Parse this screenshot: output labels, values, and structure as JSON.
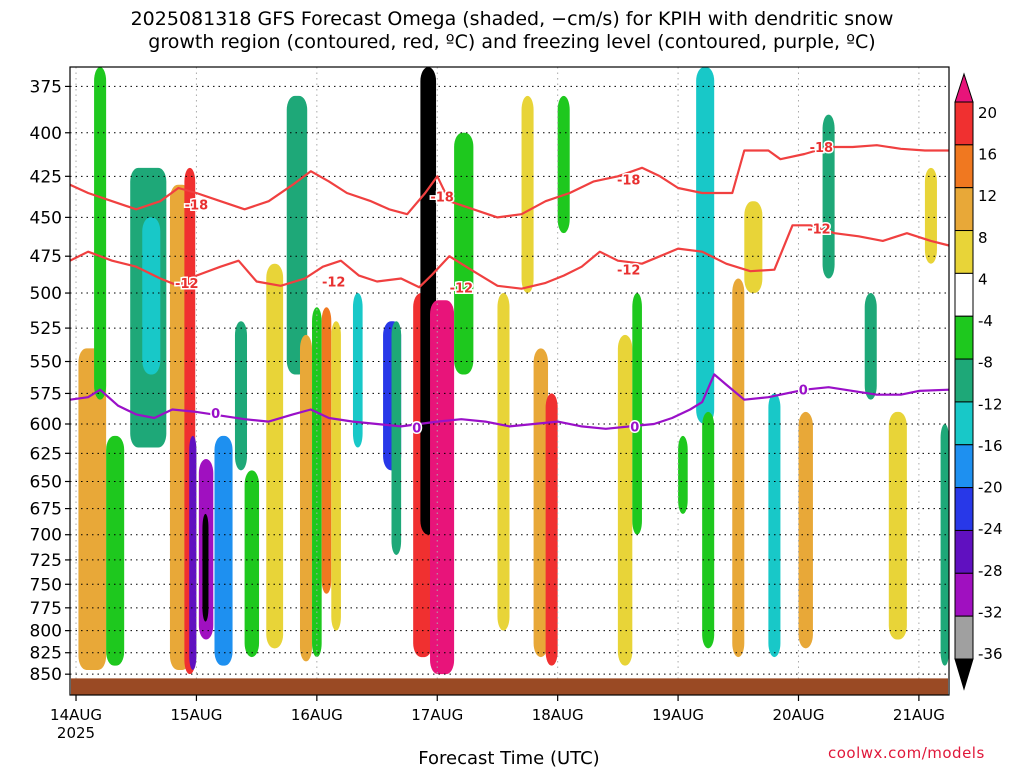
{
  "title": {
    "line1": "2025081318 GFS Forecast Omega (shaded, −cm/s) for KPIH with dendritic snow",
    "line2": "growth region (contoured, red, ºC) and freezing level (contoured, purple, ºC)"
  },
  "credit": "coolwx.com/models",
  "colors": {
    "dgz_contour": "#f04040",
    "freezing_contour": "#9a10c8",
    "ground": "#9a4a24",
    "grid": "#000000"
  },
  "chart_data": {
    "type": "heatmap",
    "xlabel": "Forecast Time (UTC)",
    "x_ticks": [
      {
        "label": "14AUG",
        "sub": "2025",
        "day": 14
      },
      {
        "label": "15AUG",
        "sub": "",
        "day": 15
      },
      {
        "label": "16AUG",
        "sub": "",
        "day": 16
      },
      {
        "label": "17AUG",
        "sub": "",
        "day": 17
      },
      {
        "label": "18AUG",
        "sub": "",
        "day": 18
      },
      {
        "label": "19AUG",
        "sub": "",
        "day": 19
      },
      {
        "label": "20AUG",
        "sub": "",
        "day": 20
      },
      {
        "label": "21AUG",
        "sub": "",
        "day": 21
      }
    ],
    "xlim": [
      13.95,
      21.25
    ],
    "y_ticks": [
      375,
      400,
      425,
      450,
      475,
      500,
      525,
      550,
      575,
      600,
      625,
      650,
      675,
      700,
      725,
      750,
      775,
      800,
      825,
      850
    ],
    "ylim": [
      365,
      875
    ],
    "y_scale": "log-pressure",
    "grid": true,
    "colorbar": {
      "levels": [
        -36,
        -32,
        -28,
        -24,
        -20,
        -16,
        -12,
        -8,
        -4,
        4,
        8,
        12,
        16,
        20
      ],
      "labels": [
        "20",
        "16",
        "12",
        "8",
        "4",
        "-4",
        "-8",
        "-12",
        "-16",
        "-20",
        "-24",
        "-28",
        "-32",
        "-36"
      ],
      "colors_top_to_bottom": [
        "#e8147a",
        "#f03030",
        "#f07820",
        "#e8a838",
        "#e8d438",
        "#ffffff",
        "#1ec81e",
        "#1ea878",
        "#18c8c8",
        "#1e90f0",
        "#2838e8",
        "#6010c0",
        "#a010c0",
        "#a0a0a0",
        "#000000"
      ]
    },
    "shaded_features": [
      {
        "t": [
          14.02,
          14.25
        ],
        "p": [
          540,
          845
        ],
        "value": 10
      },
      {
        "t": [
          14.15,
          14.25
        ],
        "p": [
          365,
          580
        ],
        "value": -6
      },
      {
        "t": [
          14.25,
          14.4
        ],
        "p": [
          610,
          840
        ],
        "value": -6
      },
      {
        "t": [
          14.45,
          14.75
        ],
        "p": [
          420,
          620
        ],
        "value": -10
      },
      {
        "t": [
          14.55,
          14.7
        ],
        "p": [
          450,
          560
        ],
        "value": -14
      },
      {
        "t": [
          14.78,
          14.95
        ],
        "p": [
          430,
          845
        ],
        "value": 8
      },
      {
        "t": [
          14.9,
          14.99
        ],
        "p": [
          420,
          850
        ],
        "value": 18
      },
      {
        "t": [
          14.94,
          15.0
        ],
        "p": [
          610,
          845
        ],
        "value": -26
      },
      {
        "t": [
          15.02,
          15.14
        ],
        "p": [
          630,
          810
        ],
        "value": -30
      },
      {
        "t": [
          15.05,
          15.1
        ],
        "p": [
          680,
          790
        ],
        "value": -38
      },
      {
        "t": [
          15.15,
          15.3
        ],
        "p": [
          610,
          840
        ],
        "value": -16
      },
      {
        "t": [
          15.32,
          15.42
        ],
        "p": [
          520,
          640
        ],
        "value": -10
      },
      {
        "t": [
          15.4,
          15.52
        ],
        "p": [
          640,
          830
        ],
        "value": -6
      },
      {
        "t": [
          15.58,
          15.72
        ],
        "p": [
          480,
          820
        ],
        "value": 6
      },
      {
        "t": [
          15.75,
          15.92
        ],
        "p": [
          380,
          560
        ],
        "value": -8
      },
      {
        "t": [
          15.86,
          15.96
        ],
        "p": [
          530,
          835
        ],
        "value": 8
      },
      {
        "t": [
          15.96,
          16.04
        ],
        "p": [
          510,
          830
        ],
        "value": -6
      },
      {
        "t": [
          16.04,
          16.12
        ],
        "p": [
          510,
          760
        ],
        "value": 14
      },
      {
        "t": [
          16.12,
          16.2
        ],
        "p": [
          520,
          800
        ],
        "value": 6
      },
      {
        "t": [
          16.3,
          16.38
        ],
        "p": [
          500,
          620
        ],
        "value": -14
      },
      {
        "t": [
          16.55,
          16.7
        ],
        "p": [
          520,
          640
        ],
        "value": -22
      },
      {
        "t": [
          16.62,
          16.7
        ],
        "p": [
          520,
          720
        ],
        "value": -8
      },
      {
        "t": [
          16.8,
          16.96
        ],
        "p": [
          500,
          830
        ],
        "value": 18
      },
      {
        "t": [
          16.86,
          16.99
        ],
        "p": [
          365,
          700
        ],
        "value": -36
      },
      {
        "t": [
          16.94,
          17.14
        ],
        "p": [
          505,
          850
        ],
        "value": 20
      },
      {
        "t": [
          17.14,
          17.3
        ],
        "p": [
          400,
          560
        ],
        "value": -6
      },
      {
        "t": [
          17.5,
          17.6
        ],
        "p": [
          500,
          800
        ],
        "value": 6
      },
      {
        "t": [
          17.7,
          17.8
        ],
        "p": [
          380,
          500
        ],
        "value": 6
      },
      {
        "t": [
          17.8,
          17.92
        ],
        "p": [
          540,
          830
        ],
        "value": 8
      },
      {
        "t": [
          17.9,
          18.0
        ],
        "p": [
          575,
          840
        ],
        "value": 18
      },
      {
        "t": [
          18.0,
          18.1
        ],
        "p": [
          380,
          460
        ],
        "value": -6
      },
      {
        "t": [
          18.5,
          18.62
        ],
        "p": [
          530,
          840
        ],
        "value": 6
      },
      {
        "t": [
          18.62,
          18.7
        ],
        "p": [
          500,
          700
        ],
        "value": -6
      },
      {
        "t": [
          19.0,
          19.08
        ],
        "p": [
          610,
          680
        ],
        "value": -6
      },
      {
        "t": [
          19.15,
          19.3
        ],
        "p": [
          365,
          600
        ],
        "value": -14
      },
      {
        "t": [
          19.2,
          19.3
        ],
        "p": [
          590,
          820
        ],
        "value": -6
      },
      {
        "t": [
          19.45,
          19.55
        ],
        "p": [
          490,
          830
        ],
        "value": 10
      },
      {
        "t": [
          19.55,
          19.7
        ],
        "p": [
          440,
          500
        ],
        "value": 6
      },
      {
        "t": [
          19.75,
          19.85
        ],
        "p": [
          575,
          830
        ],
        "value": -14
      },
      {
        "t": [
          20.0,
          20.12
        ],
        "p": [
          590,
          820
        ],
        "value": 10
      },
      {
        "t": [
          20.2,
          20.3
        ],
        "p": [
          390,
          490
        ],
        "value": -8
      },
      {
        "t": [
          20.55,
          20.65
        ],
        "p": [
          500,
          580
        ],
        "value": -8
      },
      {
        "t": [
          20.75,
          20.9
        ],
        "p": [
          590,
          810
        ],
        "value": 6
      },
      {
        "t": [
          21.05,
          21.15
        ],
        "p": [
          420,
          480
        ],
        "value": 6
      },
      {
        "t": [
          21.18,
          21.25
        ],
        "p": [
          600,
          840
        ],
        "value": -8
      }
    ],
    "contours": [
      {
        "level": -18,
        "label": "-18",
        "color": "#f04040",
        "points": [
          [
            13.95,
            430
          ],
          [
            14.1,
            435
          ],
          [
            14.3,
            440
          ],
          [
            14.5,
            445
          ],
          [
            14.7,
            440
          ],
          [
            14.85,
            432
          ],
          [
            15.0,
            435
          ],
          [
            15.2,
            440
          ],
          [
            15.4,
            445
          ],
          [
            15.6,
            440
          ],
          [
            15.8,
            430
          ],
          [
            15.95,
            422
          ],
          [
            16.1,
            428
          ],
          [
            16.25,
            435
          ],
          [
            16.45,
            440
          ],
          [
            16.6,
            445
          ],
          [
            16.75,
            448
          ],
          [
            16.9,
            435
          ],
          [
            17.0,
            425
          ],
          [
            17.1,
            440
          ],
          [
            17.3,
            445
          ],
          [
            17.5,
            450
          ],
          [
            17.7,
            448
          ],
          [
            17.9,
            440
          ],
          [
            18.1,
            435
          ],
          [
            18.3,
            428
          ],
          [
            18.5,
            425
          ],
          [
            18.7,
            420
          ],
          [
            18.85,
            425
          ],
          [
            19.0,
            432
          ],
          [
            19.2,
            435
          ],
          [
            19.45,
            435
          ],
          [
            19.55,
            410
          ],
          [
            19.75,
            410
          ],
          [
            19.85,
            415
          ],
          [
            20.05,
            412
          ],
          [
            20.25,
            408
          ],
          [
            20.45,
            408
          ],
          [
            20.65,
            407
          ],
          [
            20.85,
            409
          ],
          [
            21.05,
            410
          ],
          [
            21.25,
            410
          ]
        ]
      },
      {
        "level": -12,
        "label": "-12",
        "color": "#f04040",
        "points": [
          [
            13.95,
            478
          ],
          [
            14.1,
            472
          ],
          [
            14.3,
            478
          ],
          [
            14.5,
            482
          ],
          [
            14.7,
            490
          ],
          [
            14.85,
            495
          ],
          [
            15.0,
            488
          ],
          [
            15.2,
            482
          ],
          [
            15.35,
            478
          ],
          [
            15.5,
            492
          ],
          [
            15.7,
            495
          ],
          [
            15.9,
            490
          ],
          [
            16.05,
            482
          ],
          [
            16.2,
            478
          ],
          [
            16.35,
            488
          ],
          [
            16.5,
            492
          ],
          [
            16.7,
            490
          ],
          [
            16.85,
            496
          ],
          [
            16.95,
            488
          ],
          [
            17.1,
            475
          ],
          [
            17.3,
            485
          ],
          [
            17.5,
            495
          ],
          [
            17.7,
            497
          ],
          [
            17.9,
            493
          ],
          [
            18.05,
            488
          ],
          [
            18.2,
            482
          ],
          [
            18.35,
            472
          ],
          [
            18.5,
            478
          ],
          [
            18.7,
            480
          ],
          [
            18.85,
            475
          ],
          [
            19.0,
            470
          ],
          [
            19.2,
            472
          ],
          [
            19.4,
            480
          ],
          [
            19.6,
            485
          ],
          [
            19.8,
            484
          ],
          [
            19.95,
            455
          ],
          [
            20.1,
            455
          ],
          [
            20.3,
            460
          ],
          [
            20.5,
            462
          ],
          [
            20.7,
            465
          ],
          [
            20.9,
            460
          ],
          [
            21.1,
            465
          ],
          [
            21.25,
            468
          ]
        ]
      },
      {
        "level": 0,
        "label": "0",
        "color": "#9a10c8",
        "points": [
          [
            13.95,
            580
          ],
          [
            14.1,
            578
          ],
          [
            14.2,
            572
          ],
          [
            14.35,
            585
          ],
          [
            14.5,
            592
          ],
          [
            14.65,
            595
          ],
          [
            14.8,
            588
          ],
          [
            15.0,
            590
          ],
          [
            15.2,
            593
          ],
          [
            15.4,
            596
          ],
          [
            15.6,
            598
          ],
          [
            15.8,
            592
          ],
          [
            15.95,
            588
          ],
          [
            16.1,
            595
          ],
          [
            16.3,
            598
          ],
          [
            16.5,
            600
          ],
          [
            16.7,
            602
          ],
          [
            16.85,
            600
          ],
          [
            17.0,
            598
          ],
          [
            17.2,
            596
          ],
          [
            17.4,
            598
          ],
          [
            17.6,
            602
          ],
          [
            17.8,
            600
          ],
          [
            18.0,
            598
          ],
          [
            18.2,
            602
          ],
          [
            18.4,
            604
          ],
          [
            18.6,
            602
          ],
          [
            18.8,
            600
          ],
          [
            18.95,
            595
          ],
          [
            19.1,
            588
          ],
          [
            19.2,
            582
          ],
          [
            19.3,
            560
          ],
          [
            19.4,
            568
          ],
          [
            19.55,
            580
          ],
          [
            19.75,
            578
          ],
          [
            19.9,
            575
          ],
          [
            20.05,
            572
          ],
          [
            20.25,
            570
          ],
          [
            20.45,
            573
          ],
          [
            20.65,
            576
          ],
          [
            20.85,
            576
          ],
          [
            21.0,
            573
          ],
          [
            21.25,
            572
          ]
        ]
      }
    ],
    "contour_labels": [
      {
        "text": "-18",
        "t": 15.0,
        "p": 442
      },
      {
        "text": "-18",
        "t": 17.04,
        "p": 437
      },
      {
        "text": "-18",
        "t": 18.59,
        "p": 427
      },
      {
        "text": "-18",
        "t": 20.19,
        "p": 408
      },
      {
        "text": "-12",
        "t": 14.92,
        "p": 493
      },
      {
        "text": "-12",
        "t": 16.14,
        "p": 492
      },
      {
        "text": "-12",
        "t": 17.2,
        "p": 496
      },
      {
        "text": "-12",
        "t": 18.59,
        "p": 484
      },
      {
        "text": "-12",
        "t": 20.17,
        "p": 457
      },
      {
        "text": "0",
        "t": 15.16,
        "p": 591
      },
      {
        "text": "0",
        "t": 16.83,
        "p": 603
      },
      {
        "text": "0",
        "t": 18.64,
        "p": 602
      },
      {
        "text": "0",
        "t": 20.04,
        "p": 572
      }
    ],
    "ground_pressure": 855
  }
}
